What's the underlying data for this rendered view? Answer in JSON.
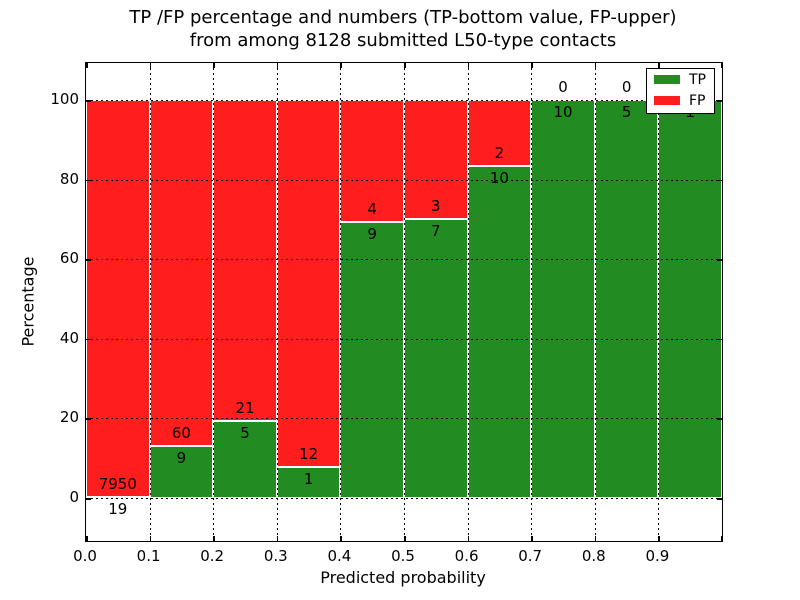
{
  "figure": {
    "title_line1": "TP /FP percentage and numbers (TP-bottom value, FP-upper)",
    "title_line2": "from among 8128 submitted L50-type contacts"
  },
  "chart_data": {
    "type": "bar",
    "stacked": true,
    "normalized_to_percent": true,
    "title": "TP /FP percentage and numbers (TP-bottom value, FP-upper)\nfrom among 8128 submitted L50-type contacts",
    "xlabel": "Predicted probability",
    "ylabel": "Percentage",
    "bins_start": [
      0.0,
      0.1,
      0.2,
      0.3,
      0.4,
      0.5,
      0.6,
      0.7,
      0.8,
      0.9
    ],
    "bin_width": 0.1,
    "series": [
      {
        "name": "TP",
        "color": "#228b22",
        "values": [
          19,
          9,
          5,
          1,
          9,
          7,
          10,
          10,
          5,
          1
        ]
      },
      {
        "name": "FP",
        "color": "#ff1e1e",
        "values": [
          7950,
          60,
          21,
          12,
          4,
          3,
          2,
          0,
          0,
          0
        ]
      }
    ],
    "x_tick_labels": [
      "0.0",
      "0.1",
      "0.2",
      "0.3",
      "0.4",
      "0.5",
      "0.6",
      "0.7",
      "0.8",
      "0.9"
    ],
    "y_ticks": [
      0,
      20,
      40,
      60,
      80,
      100
    ],
    "y_tick_labels": [
      "0",
      "20",
      "40",
      "60",
      "80",
      "100"
    ],
    "xlim": [
      0.0,
      1.0
    ],
    "ylim": [
      -10.9,
      109.4
    ],
    "grid": true,
    "grid_style": "dotted",
    "bar_edge_color": "#ffffff",
    "legend": {
      "position": "upper right",
      "entries": [
        "TP",
        "FP"
      ]
    }
  }
}
